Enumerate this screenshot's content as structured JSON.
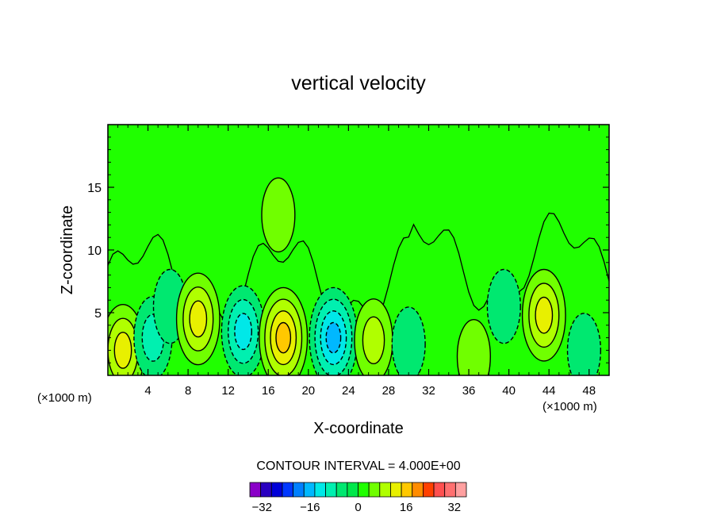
{
  "chart_data": {
    "type": "heatmap",
    "title": "vertical velocity",
    "xlabel": "X-coordinate",
    "ylabel": "Z-coordinate",
    "x_unit_left": "(×1000 m)",
    "x_unit_right": "(×1000 m)",
    "xlim": [
      0,
      50
    ],
    "ylim": [
      0,
      20
    ],
    "x_ticks": [
      4,
      8,
      12,
      16,
      20,
      24,
      28,
      32,
      36,
      40,
      44,
      48
    ],
    "y_ticks": [
      5,
      10,
      15
    ],
    "contour_interval_text": "CONTOUR INTERVAL = 4.000E+00",
    "colorbar": {
      "min": -36,
      "max": 36,
      "tick_values": [
        -32,
        -16,
        0,
        16,
        32
      ],
      "tick_labels": [
        "−32",
        "−16",
        "0",
        "16",
        "32"
      ],
      "colors": [
        "#8a00c8",
        "#2a00c0",
        "#0000d8",
        "#0038ff",
        "#0080ff",
        "#00b8ff",
        "#00e8e8",
        "#00f0b0",
        "#00e870",
        "#00e84a",
        "#20ff00",
        "#70ff00",
        "#b0ff00",
        "#e8f000",
        "#ffc800",
        "#ff8c00",
        "#ff4000",
        "#ff5050",
        "#ff7070",
        "#ffa0a0"
      ]
    },
    "background_value": 0,
    "features": [
      {
        "x": 1.5,
        "z": 2.0,
        "peak": 14,
        "sign": "updraft"
      },
      {
        "x": 4.5,
        "z": 3.0,
        "peak": -8,
        "sign": "downdraft"
      },
      {
        "x": 6.2,
        "z": 5.5,
        "peak": -6,
        "sign": "downdraft"
      },
      {
        "x": 9.0,
        "z": 4.5,
        "peak": 14,
        "sign": "updraft"
      },
      {
        "x": 13.5,
        "z": 3.5,
        "peak": -14,
        "sign": "downdraft"
      },
      {
        "x": 17.5,
        "z": 3.0,
        "peak": 18,
        "sign": "updraft"
      },
      {
        "x": 22.5,
        "z": 3.0,
        "peak": -18,
        "sign": "downdraft"
      },
      {
        "x": 26.5,
        "z": 2.8,
        "peak": 10,
        "sign": "updraft"
      },
      {
        "x": 30.0,
        "z": 2.5,
        "peak": -6,
        "sign": "downdraft"
      },
      {
        "x": 36.5,
        "z": 1.5,
        "peak": 6,
        "sign": "updraft"
      },
      {
        "x": 39.5,
        "z": 5.5,
        "peak": -6,
        "sign": "downdraft"
      },
      {
        "x": 43.5,
        "z": 4.8,
        "peak": 14,
        "sign": "updraft"
      },
      {
        "x": 47.5,
        "z": 2.0,
        "peak": -6,
        "sign": "downdraft"
      },
      {
        "x": 17.0,
        "z": 12.8,
        "peak": 6,
        "sign": "updraft"
      }
    ]
  }
}
